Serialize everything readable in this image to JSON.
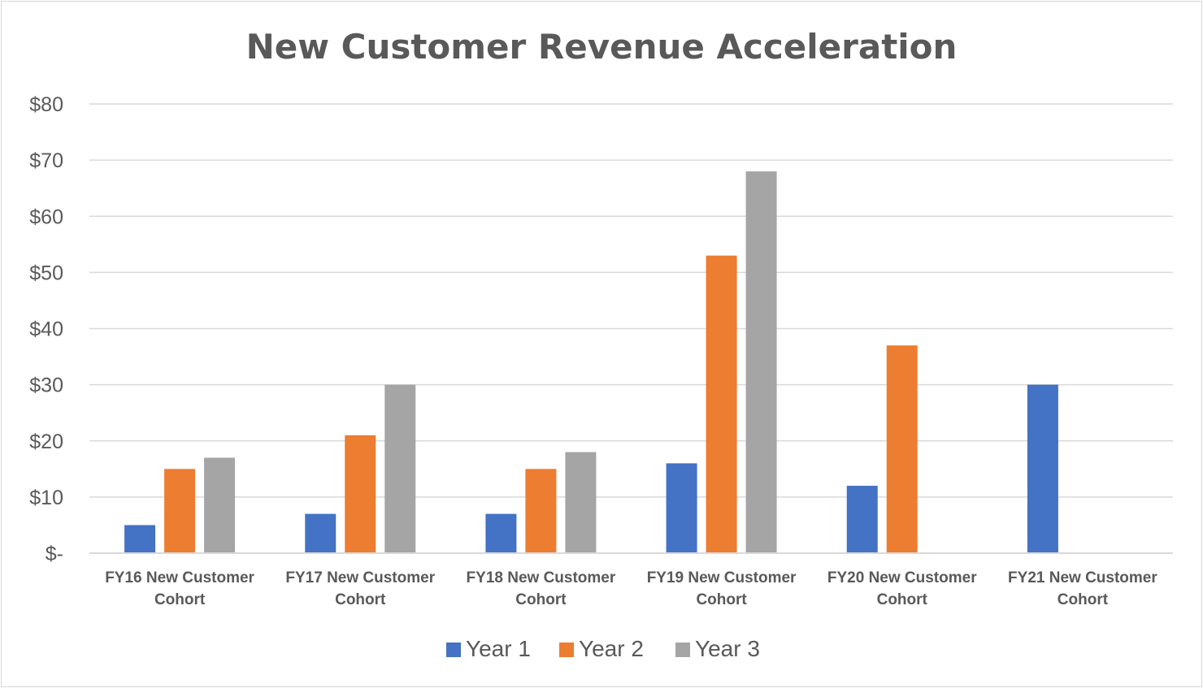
{
  "chart_data": {
    "type": "bar",
    "title": "New Customer Revenue Acceleration",
    "xlabel": "",
    "ylabel": "",
    "ylim": [
      0,
      80
    ],
    "yticks": [
      {
        "value": 0,
        "label": "$-"
      },
      {
        "value": 10,
        "label": "$10"
      },
      {
        "value": 20,
        "label": "$20"
      },
      {
        "value": 30,
        "label": "$30"
      },
      {
        "value": 40,
        "label": "$40"
      },
      {
        "value": 50,
        "label": "$50"
      },
      {
        "value": 60,
        "label": "$60"
      },
      {
        "value": 70,
        "label": "$70"
      },
      {
        "value": 80,
        "label": "$80"
      }
    ],
    "grid": true,
    "legend_position": "bottom",
    "categories": [
      [
        "FY16 New Customer",
        "Cohort"
      ],
      [
        "FY17 New Customer",
        "Cohort"
      ],
      [
        "FY18 New Customer",
        "Cohort"
      ],
      [
        "FY19 New Customer",
        "Cohort"
      ],
      [
        "FY20 New Customer",
        "Cohort"
      ],
      [
        "FY21 New Customer",
        "Cohort"
      ]
    ],
    "series": [
      {
        "name": "Year 1",
        "color": "#4472c4",
        "values": [
          5,
          7,
          7,
          16,
          12,
          30
        ]
      },
      {
        "name": "Year 2",
        "color": "#ed7d31",
        "values": [
          15,
          21,
          15,
          53,
          37,
          null
        ]
      },
      {
        "name": "Year 3",
        "color": "#a5a5a5",
        "values": [
          17,
          30,
          18,
          68,
          null,
          null
        ]
      }
    ]
  }
}
